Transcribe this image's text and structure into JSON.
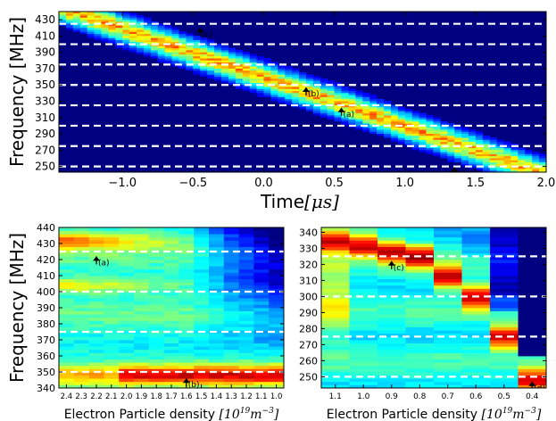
{
  "figure": {
    "shared_ylabel": "Frequency [MHz]"
  },
  "chart_data": [
    {
      "id": "top",
      "type": "heatmap",
      "title": "",
      "xlabel": "Time",
      "xlabel_math": "[μs]",
      "ylabel": "Frequency [MHz]",
      "xlim": [
        -1.45,
        2.0
      ],
      "ylim": [
        243,
        440
      ],
      "x_ticks": [
        -1.0,
        -0.5,
        0.0,
        0.5,
        1.0,
        1.5,
        2.0
      ],
      "x_tick_labels": [
        "−1.0",
        "−0.5",
        "0.0",
        "0.5",
        "1.0",
        "1.5",
        "2.0"
      ],
      "y_ticks": [
        250,
        270,
        290,
        310,
        330,
        350,
        370,
        390,
        410,
        430
      ],
      "y_tick_labels": [
        "250",
        "270",
        "290",
        "310",
        "330",
        "350",
        "370",
        "390",
        "410",
        "430"
      ],
      "dashed_lines_y": [
        250,
        275,
        300,
        325,
        350,
        375,
        400,
        425
      ],
      "sweep": {
        "x_at_top": -1.35,
        "x_at_bottom": 1.95
      },
      "annotations": [
        {
          "label": "(c)",
          "x": -0.45,
          "y": 420
        },
        {
          "label": "(b)",
          "x": 0.3,
          "y": 347
        },
        {
          "label": "(a)",
          "x": 0.55,
          "y": 322
        },
        {
          "label": "(d)",
          "x": 1.35,
          "y": 249
        }
      ]
    },
    {
      "id": "bottom-left",
      "type": "heatmap",
      "title": "",
      "xlabel": "Electron Particle density",
      "xlabel_unit": "[10^19 m^-3]",
      "ylabel": "Frequency [MHz]",
      "categories": [
        "2.4",
        "2.3",
        "2.2",
        "2.1",
        "2.0",
        "1.9",
        "1.8",
        "1.7",
        "1.6",
        "1.5",
        "1.4",
        "1.3",
        "1.2",
        "1.1",
        "1.0"
      ],
      "ylim": [
        340,
        440
      ],
      "y_ticks": [
        340,
        350,
        360,
        370,
        380,
        390,
        400,
        410,
        420,
        430,
        440
      ],
      "y_tick_labels": [
        "340",
        "350",
        "360",
        "370",
        "380",
        "390",
        "400",
        "410",
        "420",
        "430",
        "440"
      ],
      "dashed_lines_y": [
        350,
        375,
        400,
        425
      ],
      "annotations": [
        {
          "label": "(a)",
          "category_index": 2,
          "y": 422
        },
        {
          "label": "(b)",
          "category_index": 8,
          "y": 346
        }
      ]
    },
    {
      "id": "bottom-right",
      "type": "heatmap",
      "title": "",
      "xlabel": "Electron Particle density",
      "xlabel_unit": "[10^19 m^-3]",
      "ylabel": "",
      "categories": [
        "1.1",
        "1.0",
        "0.9",
        "0.8",
        "0.7",
        "0.6",
        "0.5",
        "0.4"
      ],
      "ylim": [
        243,
        343
      ],
      "y_ticks": [
        250,
        260,
        270,
        280,
        290,
        300,
        310,
        320,
        330,
        340
      ],
      "y_tick_labels": [
        "250",
        "260",
        "270",
        "280",
        "290",
        "300",
        "310",
        "320",
        "330",
        "340"
      ],
      "dashed_lines_y": [
        250,
        275,
        300,
        325
      ],
      "annotations": [
        {
          "label": "(c)",
          "category_index": 2,
          "y": 322
        },
        {
          "label": "(d)",
          "category_index": 7,
          "y": 247
        }
      ]
    }
  ]
}
